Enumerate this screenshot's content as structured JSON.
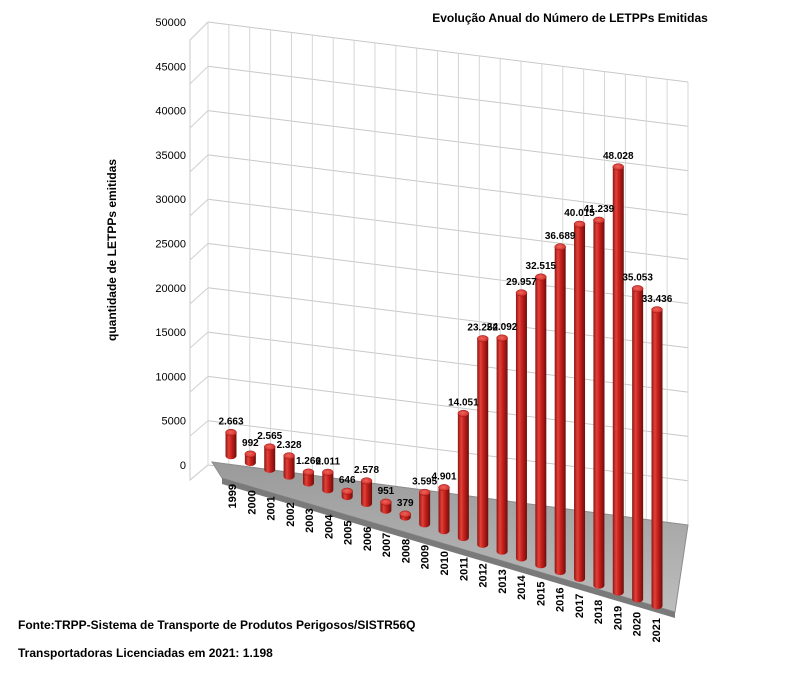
{
  "chart_data": {
    "type": "bar",
    "title": "Evolução Anual do Número de LETPPs Emitidas",
    "ylabel": "quantidade de LETPPs emitidas",
    "xlabel": "",
    "ylim": [
      0,
      50000
    ],
    "yticks": [
      0,
      5000,
      10000,
      15000,
      20000,
      25000,
      30000,
      35000,
      40000,
      45000,
      50000
    ],
    "categories": [
      "1999",
      "2000",
      "2001",
      "2002",
      "2003",
      "2004",
      "2005",
      "2006",
      "2007",
      "2008",
      "2009",
      "2010",
      "2011",
      "2012",
      "2013",
      "2014",
      "2015",
      "2016",
      "2017",
      "2018",
      "2019",
      "2020",
      "2021"
    ],
    "values": [
      2663,
      992,
      2565,
      2328,
      1266,
      2011,
      646,
      2578,
      951,
      379,
      3595,
      4901,
      14051,
      23252,
      24092,
      29957,
      32515,
      36689,
      40015,
      41239,
      48028,
      35053,
      33436
    ],
    "data_labels": [
      "2.663",
      "992",
      "2.565",
      "2.328",
      "1.266",
      "2.011",
      "646",
      "2.578",
      "951",
      "379",
      "3.595",
      "4.901",
      "14.051",
      "23.252",
      "24.092",
      "29.957",
      "32.515",
      "36.689",
      "40.015",
      "41.239",
      "48.028",
      "35.053",
      "33.436"
    ],
    "bar_color": "#c8201c",
    "style": "3d-cylinder",
    "grid": true,
    "legend": "none"
  },
  "footer": {
    "source": "Fonte:TRPP-Sistema de Transporte de Produtos Perigosos/SISTR56Q",
    "licensed": "Transportadoras Licenciadas em  2021: 1.198"
  }
}
